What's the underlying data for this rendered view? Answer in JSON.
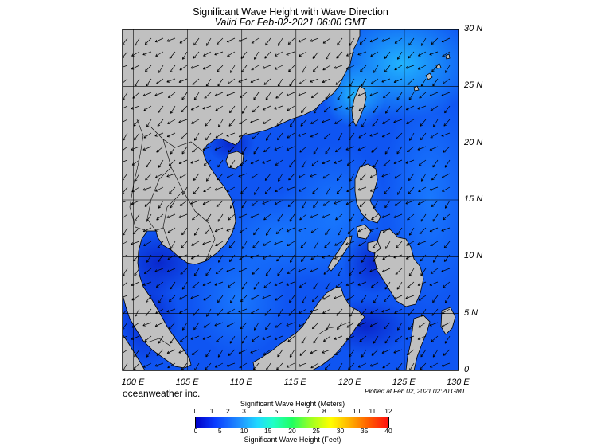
{
  "title": "Significant Wave Height with Wave Direction",
  "subtitle": "Valid For Feb-02-2021 06:00 GMT",
  "latitude_labels": [
    {
      "text": "30 N",
      "lat": 30
    },
    {
      "text": "25 N",
      "lat": 25
    },
    {
      "text": "20 N",
      "lat": 20
    },
    {
      "text": "15 N",
      "lat": 15
    },
    {
      "text": "10 N",
      "lat": 10
    },
    {
      "text": "5 N",
      "lat": 5
    },
    {
      "text": "0",
      "lat": 0
    }
  ],
  "longitude_labels": [
    {
      "text": "100 E",
      "lon": 100
    },
    {
      "text": "105 E",
      "lon": 105
    },
    {
      "text": "110 E",
      "lon": 110
    },
    {
      "text": "115 E",
      "lon": 115
    },
    {
      "text": "120 E",
      "lon": 120
    },
    {
      "text": "125 E",
      "lon": 125
    },
    {
      "text": "130 E",
      "lon": 130
    }
  ],
  "map_extent": {
    "lon_min": 99,
    "lon_max": 130,
    "lat_min": 0,
    "lat_max": 30
  },
  "grid_lines": {
    "lon": [
      100,
      105,
      110,
      115,
      120,
      125
    ],
    "lat": [
      5,
      10,
      15,
      20,
      25
    ]
  },
  "wave_direction": "arrows point toward the southwest (northeast monsoon swell)",
  "colors": {
    "land": "#c0c0c0",
    "ocean_base": "#0f55f2",
    "ocean_low": "#0a2fd8",
    "ocean_mid": "#1a7cff",
    "ocean_high": "#22a8ff",
    "arrow": "#000000"
  },
  "credit": "oceanweather inc.",
  "plotted": "Plotted at Feb 02, 2021 02:20 GMT",
  "legend": {
    "meters_title": "Significant Wave Height (Meters)",
    "feet_title": "Significant Wave Height (Feet)",
    "meters_ticks": [
      "0",
      "1",
      "2",
      "3",
      "4",
      "5",
      "6",
      "7",
      "8",
      "9",
      "10",
      "11",
      "12"
    ],
    "feet_ticks": [
      "0",
      "5",
      "10",
      "15",
      "20",
      "25",
      "30",
      "35",
      "40"
    ]
  }
}
